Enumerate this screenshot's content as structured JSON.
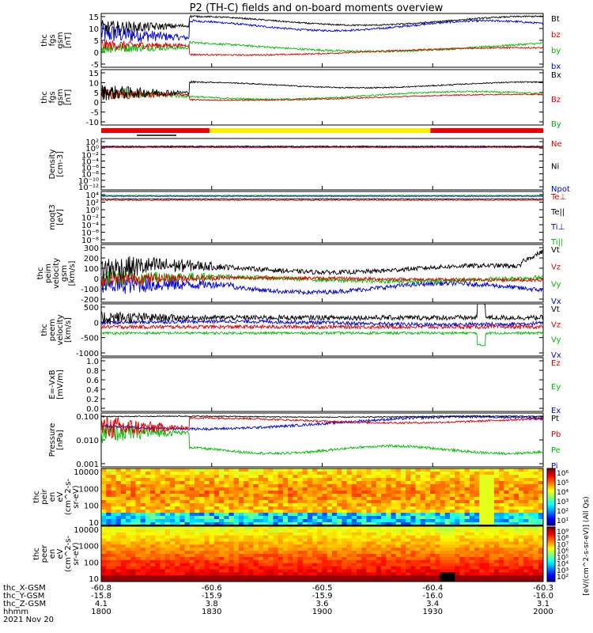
{
  "chart_data": {
    "type": "line",
    "title": "P2 (TH-C) fields and on-board moments overview",
    "time_ticks": [
      "1800",
      "1830",
      "1900",
      "1930",
      "2000"
    ],
    "ephemeris": {
      "labels": [
        "thc_X-GSM",
        "thc_Y-GSM",
        "thc_Z-GSM",
        "hhmm",
        "2021 Nov 20"
      ],
      "x_gsm": [
        "-60.8",
        "-60.6",
        "-60.5",
        "-60.4",
        "-60.3"
      ],
      "y_gsm": [
        "-15.8",
        "-15.9",
        "-15.9",
        "-16.0",
        "-16.0"
      ],
      "z_gsm": [
        "4.1",
        "3.8",
        "3.6",
        "3.4",
        "3.1"
      ]
    },
    "panels": [
      {
        "id": "fgs-gsm",
        "ylabel": [
          "thc",
          "fgs",
          "gsm",
          "[nT]"
        ],
        "yticks": [
          "15",
          "10",
          "5",
          "0",
          "-5"
        ],
        "ylim": [
          -7,
          15
        ],
        "legend": [
          {
            "name": "Bt",
            "color": "#000000"
          },
          {
            "name": "bz",
            "color": "#dd0000"
          },
          {
            "name": "by",
            "color": "#00bb00"
          },
          {
            "name": "bx",
            "color": "#0000dd"
          }
        ]
      },
      {
        "id": "fgs-dsl",
        "ylabel": [
          "thc",
          "fgs",
          "gsm",
          "[nT]"
        ],
        "yticks": [
          "15",
          "10",
          "5",
          "0",
          "-5",
          "-10"
        ],
        "ylim": [
          -14,
          15
        ],
        "legend": [
          {
            "name": "Bx",
            "color": "#000000"
          },
          {
            "name": "Bz",
            "color": "#dd0000"
          },
          {
            "name": "By",
            "color": "#00bb00"
          }
        ]
      },
      {
        "id": "density",
        "ylabel": [
          "Density",
          "[cm-3]"
        ],
        "yticks": [
          "10²",
          "10⁰",
          "10⁻²",
          "10⁻⁴",
          "10⁻⁶",
          "10⁻⁸",
          "10⁻¹⁰",
          "10⁻¹²"
        ],
        "log": true,
        "legend": [
          {
            "name": "Ne",
            "color": "#dd0000"
          },
          {
            "name": "Ni",
            "color": "#000000"
          },
          {
            "name": "Npot",
            "color": "#0000dd"
          }
        ]
      },
      {
        "id": "temperature",
        "ylabel": [
          "moqt3",
          "[eV]"
        ],
        "yticks": [
          "10⁴",
          "10²",
          "10⁰",
          "10⁻²",
          "10⁻⁴",
          "10⁻⁶",
          "10⁻⁸"
        ],
        "log": true,
        "legend": [
          {
            "name": "Te⊥",
            "color": "#dd0000"
          },
          {
            "name": "Te||",
            "color": "#000000"
          },
          {
            "name": "Ti⊥",
            "color": "#0000dd"
          },
          {
            "name": "Ti||",
            "color": "#00bb00"
          }
        ]
      },
      {
        "id": "ion-velocity",
        "ylabel": [
          "thc",
          "peim",
          "velocity",
          "gsm",
          "[km/s]"
        ],
        "yticks": [
          "300",
          "200",
          "100",
          "0",
          "-100",
          "-200"
        ],
        "ylim": [
          -210,
          310
        ],
        "legend": [
          {
            "name": "Vt",
            "color": "#000000"
          },
          {
            "name": "Vz",
            "color": "#dd0000"
          },
          {
            "name": "Vy",
            "color": "#00bb00"
          },
          {
            "name": "Vx",
            "color": "#0000dd"
          }
        ]
      },
      {
        "id": "electron-velocity",
        "ylabel": [
          "thc",
          "peem",
          "velocity",
          "[km/s]"
        ],
        "yticks": [
          "500",
          "0",
          "-500",
          "-1000"
        ],
        "ylim": [
          -1000,
          700
        ],
        "legend": [
          {
            "name": "Vt",
            "color": "#000000"
          },
          {
            "name": "Vz",
            "color": "#dd0000"
          },
          {
            "name": "Vy",
            "color": "#00bb00"
          },
          {
            "name": "Vx",
            "color": "#0000dd"
          }
        ]
      },
      {
        "id": "e-field",
        "ylabel": [
          "E=-VxB",
          "[mV/m]"
        ],
        "yticks": [
          "1.0",
          "0.8",
          "0.6",
          "0.4",
          "0.2",
          "0.0"
        ],
        "ylim": [
          0,
          1
        ],
        "legend": [
          {
            "name": "Ez",
            "color": "#dd0000"
          },
          {
            "name": "Ey",
            "color": "#00bb00"
          },
          {
            "name": "Ex",
            "color": "#0000dd"
          }
        ]
      },
      {
        "id": "pressure",
        "ylabel": [
          "Pressure",
          "[nPa]"
        ],
        "yticks": [
          "0.100",
          "0.010",
          "0.001"
        ],
        "log": true,
        "legend": [
          {
            "name": "Pt",
            "color": "#000000"
          },
          {
            "name": "Pb",
            "color": "#dd0000"
          },
          {
            "name": "Pe",
            "color": "#00bb00"
          },
          {
            "name": "Pi",
            "color": "#0000dd"
          }
        ]
      },
      {
        "id": "ion-spectrogram",
        "ylabel": [
          "thc",
          "peir",
          "en",
          "eV",
          "(cm^2-s-",
          "sr-eV)"
        ],
        "yticks": [
          "10000",
          "1000",
          "100",
          "10"
        ],
        "type": "heatmap"
      },
      {
        "id": "electron-spectrogram",
        "ylabel": [
          "thc",
          "peer",
          "en",
          "eV",
          "(cm^2-s-",
          "sr-eV)"
        ],
        "yticks": [
          "10000",
          "1000",
          "100",
          "10"
        ],
        "type": "heatmap"
      }
    ],
    "colorbar": {
      "label": "[eV/(cm^2-s-sr-eV)] (All Qs)",
      "upper_ticks": [
        "10⁶",
        "10⁵",
        "10⁴",
        "10³",
        "10²",
        "10¹"
      ],
      "lower_ticks": [
        "10⁹",
        "10⁸",
        "10⁷",
        "10⁶",
        "10⁵",
        "10⁴",
        "10³",
        "10²"
      ]
    },
    "mode_bar": [
      {
        "from": 0.0,
        "to": 0.245,
        "color": "#ee0000"
      },
      {
        "from": 0.245,
        "to": 0.745,
        "color": "#ffee00"
      },
      {
        "from": 0.745,
        "to": 1.0,
        "color": "#ee0000"
      }
    ]
  }
}
